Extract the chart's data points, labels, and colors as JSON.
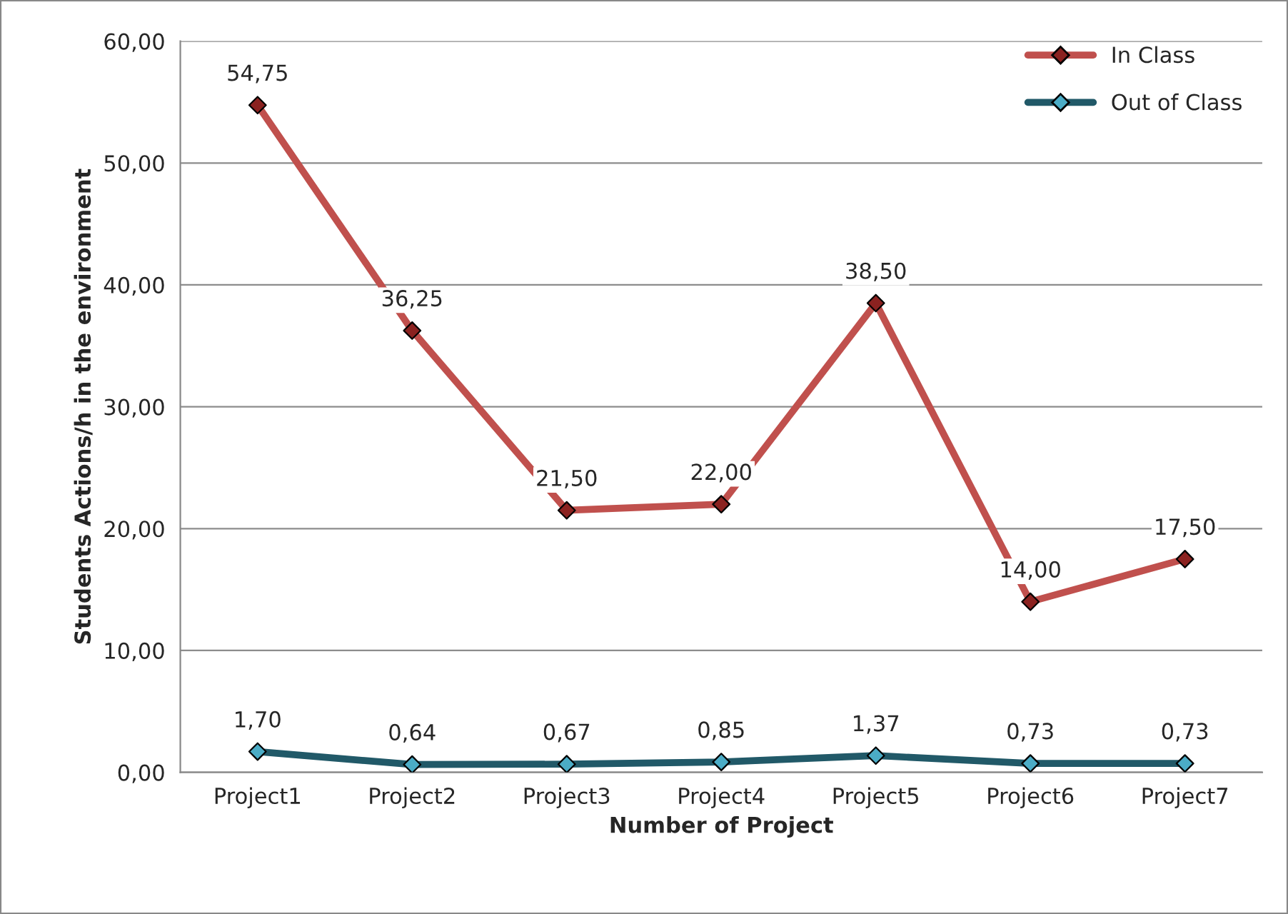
{
  "chart_data": {
    "type": "line",
    "xlabel": "Number of Project",
    "ylabel": "Students Actions/h in the environment",
    "categories": [
      "Project1",
      "Project2",
      "Project3",
      "Project4",
      "Project5",
      "Project6",
      "Project7"
    ],
    "series": [
      {
        "name": "In Class",
        "color": "#c0504d",
        "values": [
          54.75,
          36.25,
          21.5,
          22.0,
          38.5,
          14.0,
          17.5
        ],
        "value_labels": [
          "54,75",
          "36,25",
          "21,50",
          "22,00",
          "38,50",
          "14,00",
          "17,50"
        ]
      },
      {
        "name": "Out of Class",
        "color": "#215968",
        "values": [
          1.7,
          0.64,
          0.67,
          0.85,
          1.37,
          0.73,
          0.73
        ],
        "value_labels": [
          "1,70",
          "0,64",
          "0,67",
          "0,85",
          "1,37",
          "0,73",
          "0,73"
        ]
      }
    ],
    "ylim": [
      0,
      60
    ],
    "yticks": [
      {
        "value": 0,
        "label": "0,00"
      },
      {
        "value": 10,
        "label": "10,00"
      },
      {
        "value": 20,
        "label": "20,00"
      },
      {
        "value": 30,
        "label": "30,00"
      },
      {
        "value": 40,
        "label": "40,00"
      },
      {
        "value": 50,
        "label": "50,00"
      },
      {
        "value": 60,
        "label": "60,00"
      }
    ],
    "grid": "y",
    "legend": "top right",
    "marker": "diamond",
    "line_style": "solid"
  }
}
